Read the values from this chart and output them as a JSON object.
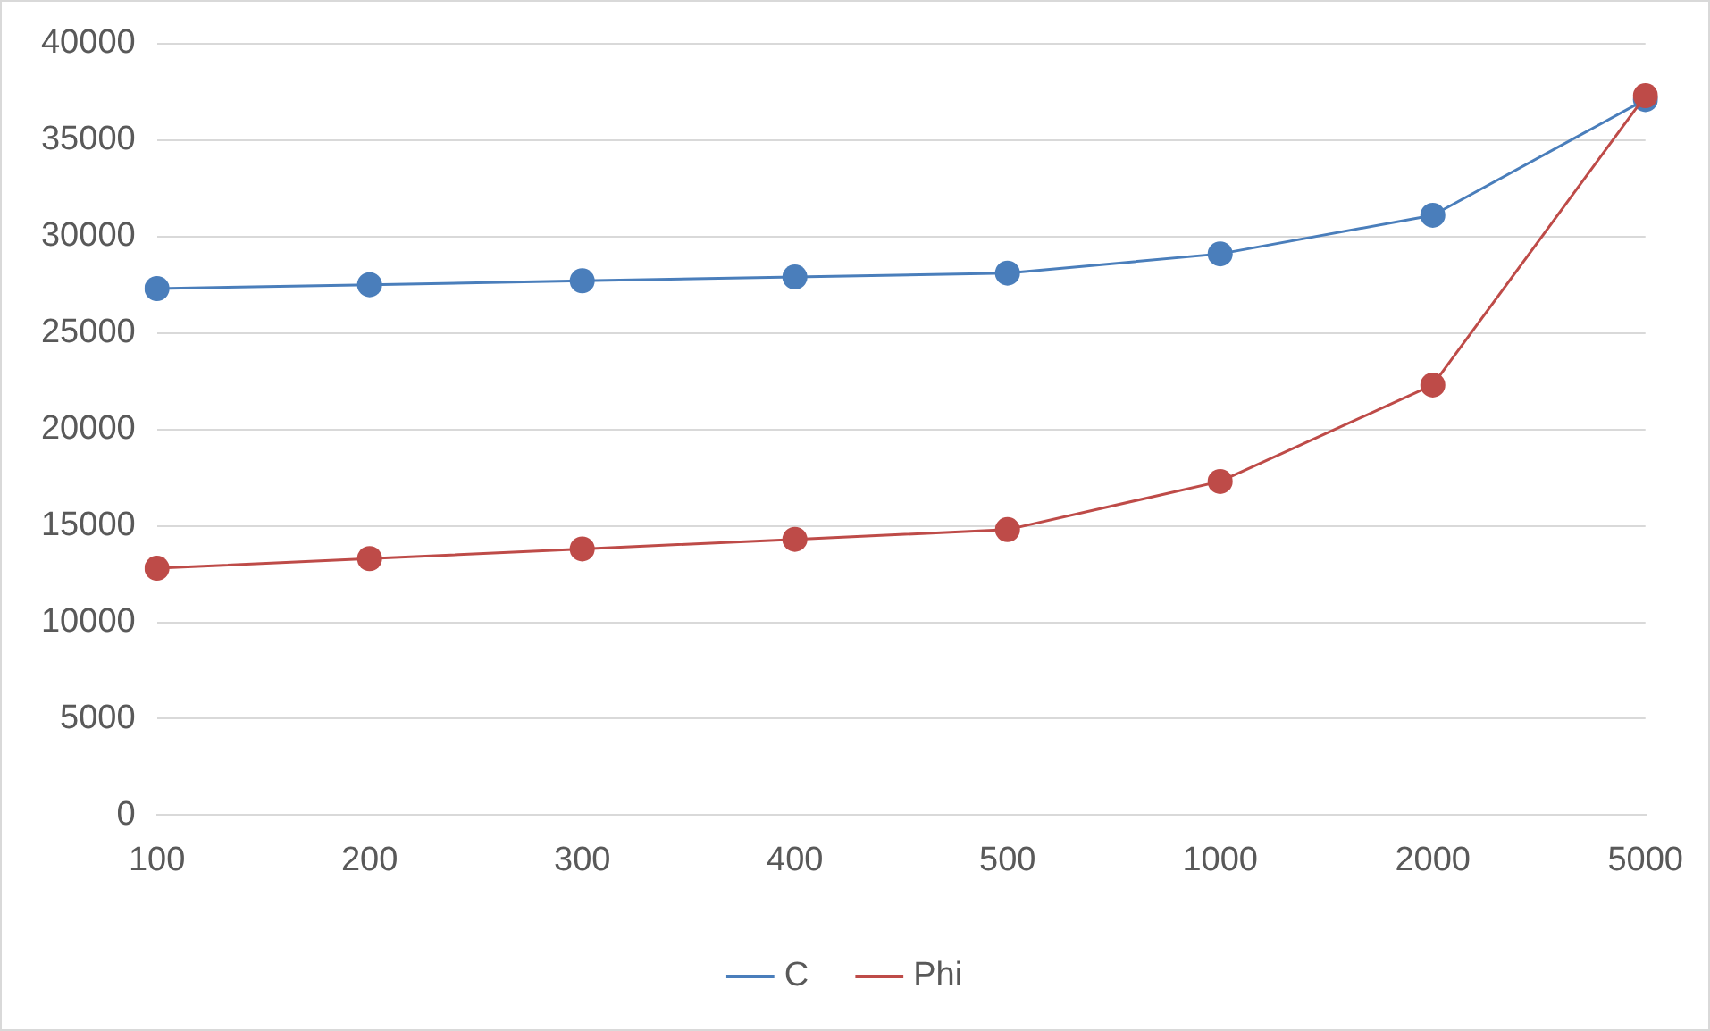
{
  "chart_data": {
    "type": "line",
    "categories": [
      "100",
      "200",
      "300",
      "400",
      "500",
      "1000",
      "2000",
      "5000"
    ],
    "series": [
      {
        "name": "C",
        "color": "#4a7ebb",
        "values": [
          27300,
          27500,
          27700,
          27900,
          28100,
          29100,
          31100,
          37100
        ]
      },
      {
        "name": "Phi",
        "color": "#be4b48",
        "values": [
          12800,
          13300,
          13800,
          14300,
          14800,
          17300,
          22300,
          37300
        ]
      }
    ],
    "ylim": [
      0,
      40000
    ],
    "yticks": [
      0,
      5000,
      10000,
      15000,
      20000,
      25000,
      30000,
      35000,
      40000
    ],
    "grid": "y",
    "legend": "bottom",
    "marker": "circle",
    "line_style": "solid"
  }
}
